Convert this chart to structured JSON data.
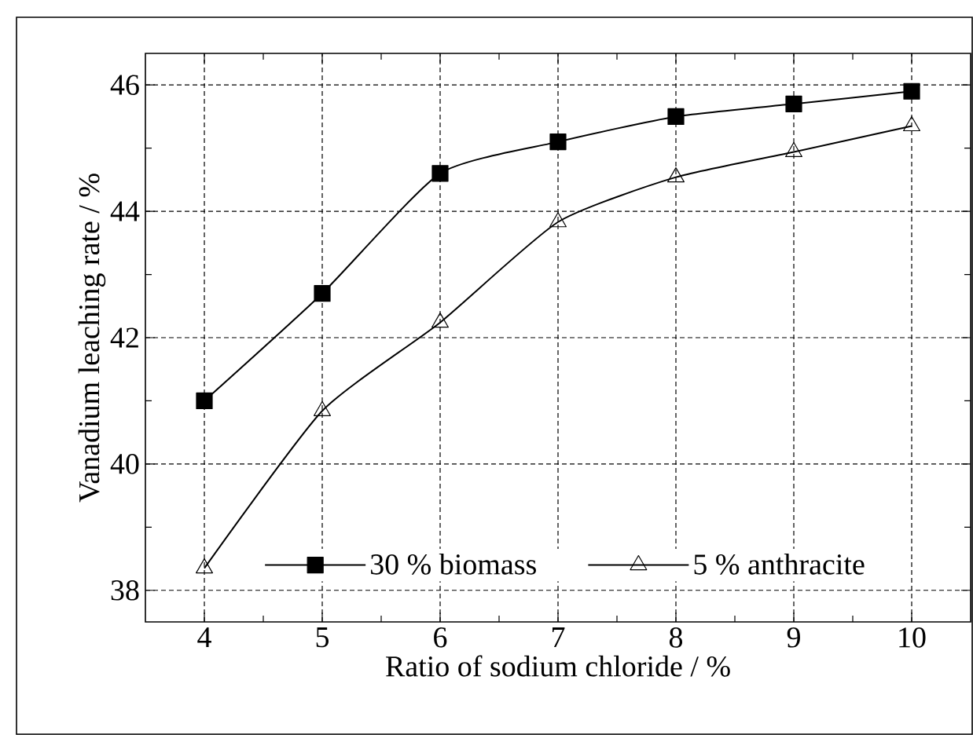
{
  "chart_data": {
    "type": "line",
    "xlabel": "Ratio of sodium chloride / %",
    "ylabel": "Vanadium leaching rate / %",
    "x": [
      4,
      5,
      6,
      7,
      8,
      9,
      10
    ],
    "series": [
      {
        "name": "30 % biomass",
        "color": "#000000",
        "marker": "square",
        "values": [
          41.0,
          42.7,
          44.6,
          45.1,
          45.5,
          45.7,
          45.9
        ]
      },
      {
        "name": "5 % anthracite",
        "color": "#000000",
        "marker": "triangle",
        "values": [
          38.35,
          40.84,
          42.24,
          43.83,
          44.54,
          44.94,
          45.35
        ]
      }
    ],
    "xlim": [
      3.5,
      10.5
    ],
    "ylim": [
      37.5,
      46.5
    ],
    "xticks": [
      4,
      5,
      6,
      7,
      8,
      9,
      10
    ],
    "yticks": [
      38,
      40,
      42,
      44,
      46
    ],
    "grid": true,
    "legend": "bottom",
    "line_style": "solid"
  }
}
